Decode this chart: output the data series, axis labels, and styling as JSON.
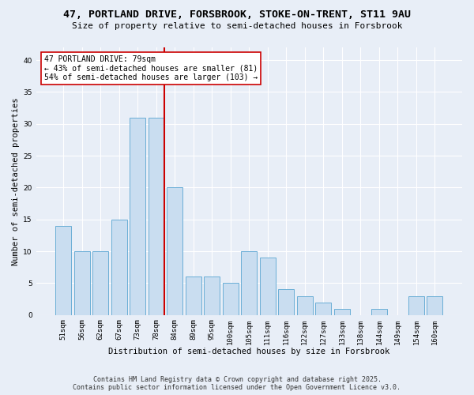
{
  "title": "47, PORTLAND DRIVE, FORSBROOK, STOKE-ON-TRENT, ST11 9AU",
  "subtitle": "Size of property relative to semi-detached houses in Forsbrook",
  "xlabel": "Distribution of semi-detached houses by size in Forsbrook",
  "ylabel": "Number of semi-detached properties",
  "categories": [
    "51sqm",
    "56sqm",
    "62sqm",
    "67sqm",
    "73sqm",
    "78sqm",
    "84sqm",
    "89sqm",
    "95sqm",
    "100sqm",
    "105sqm",
    "111sqm",
    "116sqm",
    "122sqm",
    "127sqm",
    "133sqm",
    "138sqm",
    "144sqm",
    "149sqm",
    "154sqm",
    "160sqm"
  ],
  "values": [
    14,
    10,
    10,
    15,
    31,
    31,
    20,
    6,
    6,
    5,
    10,
    9,
    4,
    3,
    2,
    1,
    0,
    1,
    0,
    3,
    3
  ],
  "bar_color": "#c9ddf0",
  "bar_edge_color": "#6aaed6",
  "highlight_index": 5,
  "vline_color": "#cc0000",
  "annotation_title": "47 PORTLAND DRIVE: 79sqm",
  "annotation_line1": "← 43% of semi-detached houses are smaller (81)",
  "annotation_line2": "54% of semi-detached houses are larger (103) →",
  "annotation_box_color": "#ffffff",
  "annotation_box_edge": "#cc0000",
  "footer1": "Contains HM Land Registry data © Crown copyright and database right 2025.",
  "footer2": "Contains public sector information licensed under the Open Government Licence v3.0.",
  "bg_color": "#e8eef7",
  "plot_bg": "#e8eef7",
  "grid_color": "#ffffff",
  "ylim": [
    0,
    42
  ],
  "yticks": [
    0,
    5,
    10,
    15,
    20,
    25,
    30,
    35,
    40
  ],
  "title_fontsize": 9.5,
  "subtitle_fontsize": 8,
  "axis_label_fontsize": 7.5,
  "tick_fontsize": 6.5,
  "annotation_fontsize": 7,
  "footer_fontsize": 6
}
